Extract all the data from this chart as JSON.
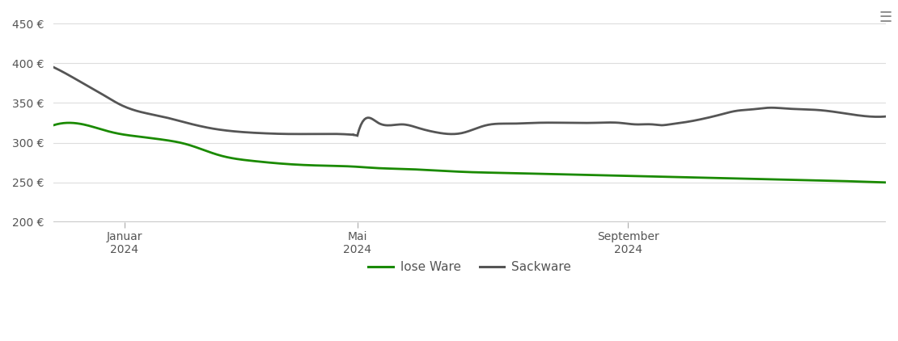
{
  "background_color": "#ffffff",
  "grid_color": "#dddddd",
  "lose_ware_color": "#1a8a00",
  "sackware_color": "#555555",
  "legend_labels": [
    "lose Ware",
    "Sackware"
  ],
  "ylim": [
    200,
    460
  ],
  "yticks": [
    200,
    250,
    300,
    350,
    400,
    450
  ],
  "ytick_labels": [
    "200 €",
    "250 €",
    "300 €",
    "350 €",
    "400 €",
    "450 €"
  ],
  "xlim": [
    0,
    1
  ],
  "lose_ware_x": [
    0.0,
    0.02,
    0.04,
    0.06,
    0.08,
    0.1,
    0.13,
    0.16,
    0.2,
    0.24,
    0.27,
    0.3,
    0.33,
    0.36,
    0.39,
    0.42,
    0.46,
    0.5,
    0.54,
    0.58,
    0.62,
    0.66,
    0.7,
    0.74,
    0.78,
    0.82,
    0.86,
    0.9,
    0.94,
    0.97,
    1.0
  ],
  "lose_ware_y": [
    322,
    325,
    322,
    316,
    311,
    308,
    304,
    298,
    284,
    277,
    274,
    272,
    271,
    270,
    268,
    267,
    265,
    263,
    262,
    261,
    260,
    259,
    258,
    257,
    256,
    255,
    254,
    253,
    252,
    251,
    250
  ],
  "sackware_x": [
    0.0,
    0.02,
    0.04,
    0.06,
    0.08,
    0.1,
    0.13,
    0.16,
    0.19,
    0.22,
    0.25,
    0.28,
    0.31,
    0.34,
    0.36,
    0.365,
    0.37,
    0.39,
    0.42,
    0.44,
    0.46,
    0.49,
    0.52,
    0.55,
    0.58,
    0.62,
    0.65,
    0.68,
    0.7,
    0.72,
    0.73,
    0.74,
    0.76,
    0.78,
    0.8,
    0.82,
    0.84,
    0.86,
    0.88,
    0.9,
    0.92,
    0.95,
    0.97,
    1.0
  ],
  "sackware_y": [
    395,
    384,
    372,
    360,
    348,
    340,
    333,
    325,
    318,
    314,
    312,
    311,
    311,
    311,
    310,
    309,
    324,
    325,
    323,
    318,
    313,
    312,
    322,
    324,
    325,
    325,
    325,
    325,
    323,
    323,
    322,
    323,
    326,
    330,
    335,
    340,
    342,
    344,
    343,
    342,
    341,
    337,
    334,
    333
  ],
  "xtick_positions": [
    0.085,
    0.365,
    0.69
  ],
  "xtick_labels": [
    "Januar\n2024",
    "Mai\n2024",
    "September\n2024"
  ]
}
